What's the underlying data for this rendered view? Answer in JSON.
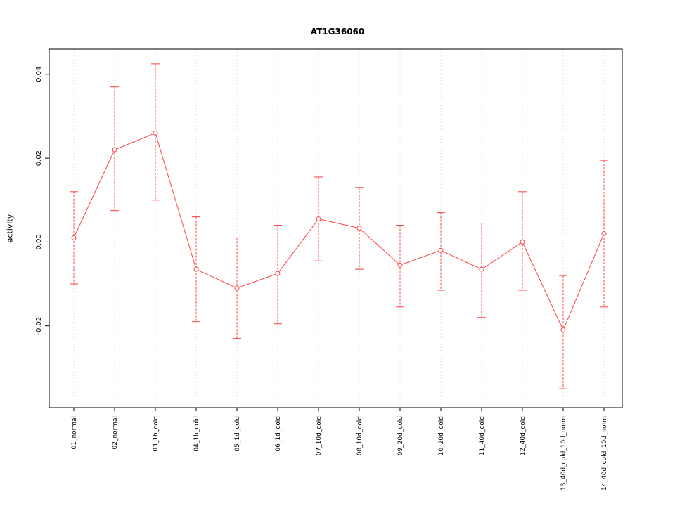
{
  "chart_data": {
    "type": "line",
    "title": "AT1G36060",
    "xlabel": "",
    "ylabel": "activity",
    "legend": "none",
    "grid": "dotted vertical gridlines per category, dotted horizontal line at 0",
    "marker": "open-circle",
    "line_color": "#ff4040",
    "grid_color": "#d8d8d8",
    "axis_color": "#000000",
    "ylim": [
      -0.0395,
      0.046
    ],
    "yticks": [
      -0.02,
      0.0,
      0.02,
      0.04
    ],
    "ytick_labels": [
      "-0.02",
      "0.00",
      "0.02",
      "0.04"
    ],
    "categories": [
      "01_normal",
      "02_normal",
      "03_1h_cold",
      "04_1h_cold",
      "05_1d_cold",
      "06_1d_cold",
      "07_10d_cold",
      "08_10d_cold",
      "09_20d_cold",
      "10_20d_cold",
      "11_40d_cold",
      "12_40d_cold",
      "13_40d_cold_10d_norm",
      "14_40d_cold_10d_norm"
    ],
    "series": [
      {
        "name": "activity",
        "values": [
          0.001,
          0.022,
          0.026,
          -0.0065,
          -0.011,
          -0.0075,
          0.0055,
          0.0033,
          -0.0055,
          -0.002,
          -0.0065,
          0.0,
          -0.021,
          0.002
        ],
        "err_low": [
          -0.01,
          0.0075,
          0.01,
          -0.019,
          -0.023,
          -0.0195,
          -0.0045,
          -0.0065,
          -0.0155,
          -0.0115,
          -0.018,
          -0.0115,
          -0.035,
          -0.0155
        ],
        "err_high": [
          0.012,
          0.037,
          0.0425,
          0.006,
          0.001,
          0.004,
          0.0155,
          0.013,
          0.004,
          0.007,
          0.0045,
          0.012,
          -0.008,
          0.0195
        ]
      }
    ]
  }
}
